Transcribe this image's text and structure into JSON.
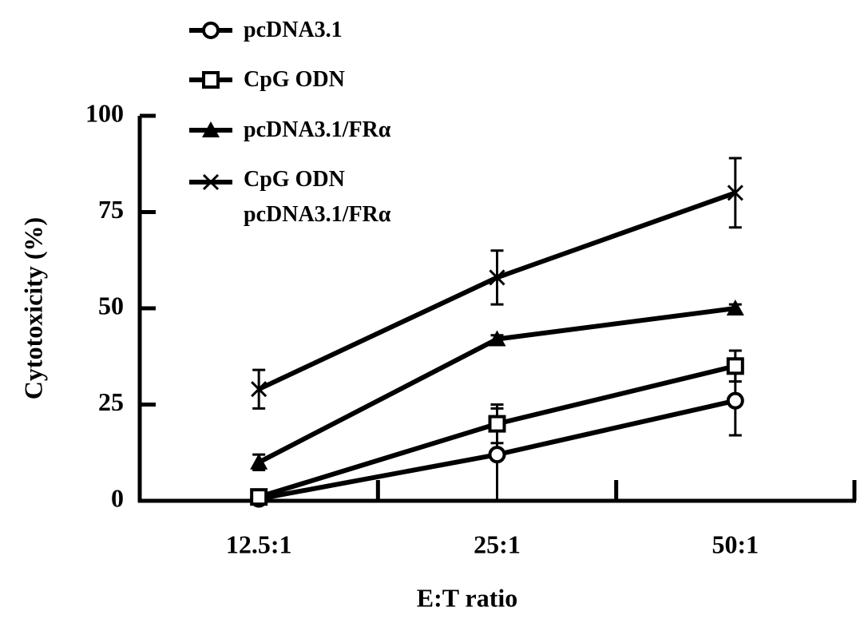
{
  "chart_data": {
    "type": "line",
    "x_label": "E:T ratio",
    "y_label": "Cytotoxicity (%)",
    "categories": [
      "12.5:1",
      "25:1",
      "50:1"
    ],
    "ylim": [
      0,
      100
    ],
    "yticks": [
      0,
      25,
      50,
      75,
      100
    ],
    "series": [
      {
        "name": "pcDNA3.1",
        "color": "#000000",
        "marker": "circle",
        "values": [
          0.5,
          12,
          26
        ],
        "errors": [
          0.5,
          12,
          9
        ]
      },
      {
        "name": "CpG ODN",
        "color": "#000000",
        "marker": "square",
        "values": [
          1,
          20,
          35
        ],
        "errors": [
          0.5,
          5,
          4
        ]
      },
      {
        "name": "pcDNA3.1/FRα",
        "color": "#000000",
        "marker": "triangle",
        "values": [
          10,
          42,
          50
        ],
        "errors": [
          2,
          1,
          1
        ]
      },
      {
        "name": "CpG ODN\npcDNA3.1/FRα",
        "color": "#000000",
        "marker": "cross",
        "values": [
          29,
          58,
          80
        ],
        "errors": [
          5,
          7,
          9
        ]
      }
    ]
  }
}
